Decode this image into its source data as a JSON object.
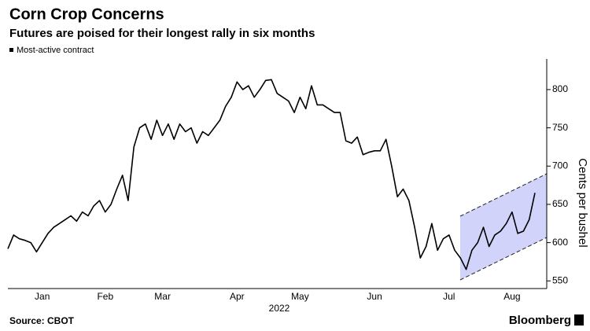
{
  "chart_data": {
    "type": "line",
    "title": "Corn Crop Concerns",
    "subtitle": "Futures are poised for their longest rally in six months",
    "ylabel": "Cents per bushel",
    "xlabel": "2022",
    "source": "Source: CBOT",
    "brand": "Bloomberg",
    "categories": [
      null,
      null,
      null,
      null,
      null,
      null,
      "Jan",
      null,
      null,
      null,
      null,
      null,
      null,
      null,
      null,
      null,
      null,
      "Feb",
      null,
      null,
      null,
      null,
      null,
      null,
      null,
      null,
      null,
      "Mar",
      null,
      null,
      null,
      null,
      null,
      null,
      null,
      null,
      null,
      null,
      null,
      null,
      "Apr",
      null,
      null,
      null,
      null,
      null,
      null,
      null,
      null,
      null,
      null,
      "May",
      null,
      null,
      null,
      null,
      null,
      null,
      null,
      null,
      null,
      null,
      null,
      null,
      "Jun",
      null,
      null,
      null,
      null,
      null,
      null,
      null,
      null,
      null,
      null,
      null,
      null,
      "Jul",
      null,
      null,
      null,
      null,
      null,
      null,
      null,
      null,
      null,
      null,
      "Aug",
      null,
      null,
      null,
      null
    ],
    "series": [
      {
        "name": "Most-active contract",
        "color": "#000000",
        "values": [
          592,
          610,
          605,
          603,
          600,
          588,
          600,
          612,
          620,
          625,
          630,
          635,
          628,
          640,
          635,
          648,
          655,
          640,
          650,
          670,
          688,
          655,
          725,
          750,
          755,
          735,
          760,
          740,
          755,
          735,
          755,
          745,
          750,
          730,
          745,
          740,
          750,
          760,
          778,
          790,
          810,
          800,
          805,
          790,
          800,
          812,
          813,
          795,
          790,
          785,
          770,
          790,
          775,
          805,
          780,
          780,
          775,
          770,
          770,
          733,
          730,
          738,
          715,
          718,
          720,
          720,
          735,
          700,
          660,
          670,
          655,
          620,
          580,
          595,
          625,
          590,
          605,
          610,
          590,
          580,
          565,
          590,
          600,
          620,
          595,
          610,
          615,
          625,
          640,
          612,
          615,
          630,
          665
        ]
      }
    ],
    "ylim": [
      540,
      840
    ],
    "yticks": [
      550,
      600,
      650,
      700,
      750,
      800
    ],
    "grid": false
  }
}
